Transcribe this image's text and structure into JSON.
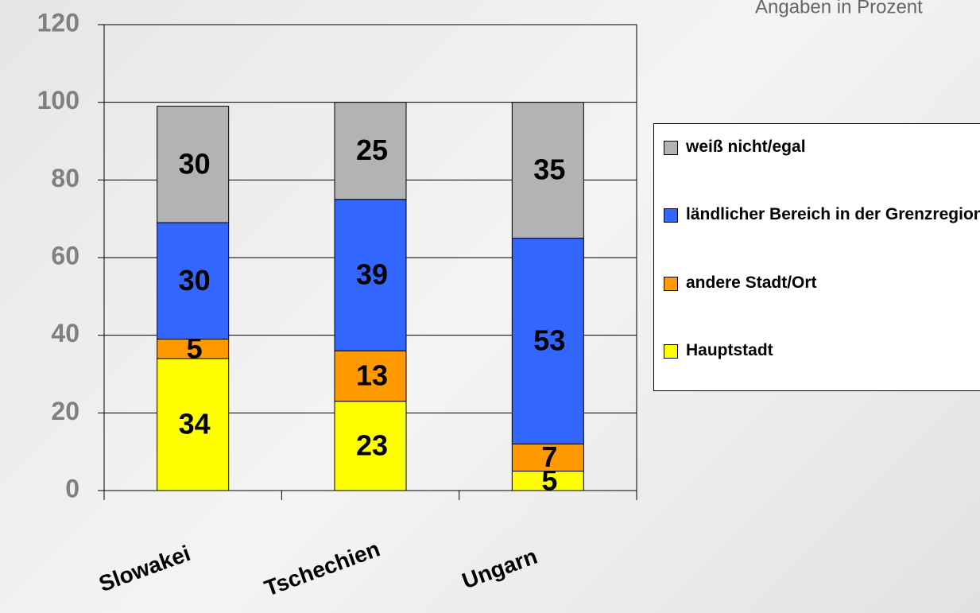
{
  "chart_data": {
    "type": "stacked_bar",
    "subtitle": "Angaben in Prozent",
    "categories": [
      "Slowakei",
      "Tschechien",
      "Ungarn"
    ],
    "series": [
      {
        "name": "Hauptstadt",
        "color": "#ffff00",
        "values": [
          34,
          23,
          5
        ]
      },
      {
        "name": "andere Stadt/Ort",
        "color": "#ff9900",
        "values": [
          5,
          13,
          7
        ]
      },
      {
        "name": "ländlicher Bereich in der Grenzregion",
        "color": "#3366ff",
        "values": [
          30,
          39,
          53
        ]
      },
      {
        "name": "weiß nicht/egal",
        "color": "#b3b3b3",
        "values": [
          30,
          25,
          35
        ]
      }
    ],
    "ylim": [
      0,
      120
    ],
    "yticks": [
      0,
      20,
      40,
      60,
      80,
      100,
      120
    ],
    "grid": true,
    "legend": "right"
  }
}
